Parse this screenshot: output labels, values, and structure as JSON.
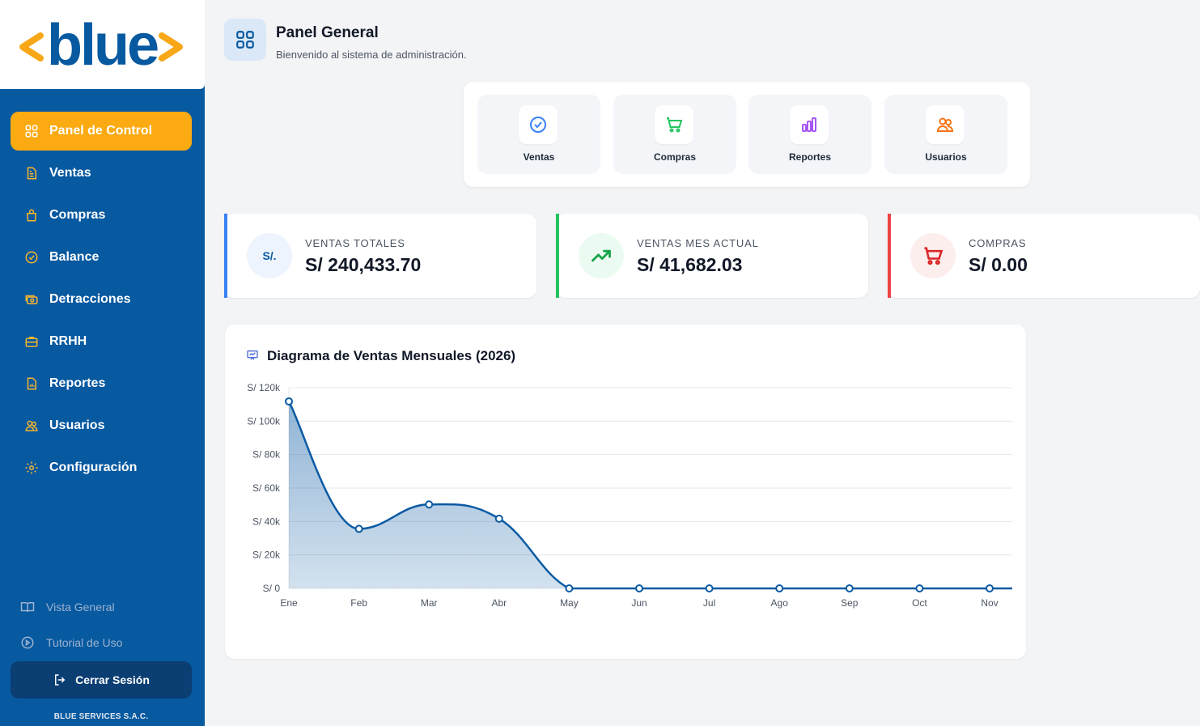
{
  "brand": {
    "logo_text": "<blue>"
  },
  "sidebar": {
    "items": [
      {
        "label": "Panel de Control",
        "icon": "grid-icon",
        "active": true
      },
      {
        "label": "Ventas",
        "icon": "document-icon"
      },
      {
        "label": "Compras",
        "icon": "shopping-bag-icon"
      },
      {
        "label": "Balance",
        "icon": "check-circle-icon"
      },
      {
        "label": "Detracciones",
        "icon": "money-icon"
      },
      {
        "label": "RRHH",
        "icon": "briefcase-icon"
      },
      {
        "label": "Reportes",
        "icon": "report-icon"
      },
      {
        "label": "Usuarios",
        "icon": "users-icon"
      },
      {
        "label": "Configuración",
        "icon": "gear-icon"
      }
    ],
    "bottom": {
      "overview": "Vista General",
      "tutorial": "Tutorial de Uso",
      "logout": "Cerrar Sesión",
      "company": "BLUE SERVICES S.A.C."
    }
  },
  "header": {
    "title": "Panel General",
    "subtitle": "Bienvenido al sistema de administración."
  },
  "quick_actions": [
    {
      "label": "Ventas",
      "icon": "check-circle-icon",
      "color": "#3b82f6"
    },
    {
      "label": "Compras",
      "icon": "cart-icon",
      "color": "#22c55e"
    },
    {
      "label": "Reportes",
      "icon": "bar-chart-icon",
      "color": "#a855f7"
    },
    {
      "label": "Usuarios",
      "icon": "users-icon",
      "color": "#f97316"
    }
  ],
  "stats": [
    {
      "label": "VENTAS TOTALES",
      "value": "S/ 240,433.70",
      "icon_text": "S/.",
      "accent": "#3b82f6"
    },
    {
      "label": "VENTAS MES ACTUAL",
      "value": "S/ 41,682.03",
      "accent": "#22c55e"
    },
    {
      "label": "COMPRAS",
      "value": "S/ 0.00",
      "accent": "#ef4444"
    }
  ],
  "chart_data": {
    "type": "area",
    "title": "Diagrama de Ventas Mensuales (2026)",
    "categories": [
      "Ene",
      "Feb",
      "Mar",
      "Abr",
      "May",
      "Jun",
      "Jul",
      "Ago",
      "Sep",
      "Oct",
      "Nov"
    ],
    "values": [
      111800,
      35600,
      50200,
      41700,
      0,
      0,
      0,
      0,
      0,
      0,
      0
    ],
    "ylim": [
      0,
      120000
    ],
    "yticks": [
      0,
      20000,
      40000,
      60000,
      80000,
      100000,
      120000
    ],
    "ytick_labels": [
      "S/ 0",
      "S/ 20k",
      "S/ 40k",
      "S/ 60k",
      "S/ 80k",
      "S/ 100k",
      "S/ 120k"
    ],
    "grid": true,
    "line_color": "#0b5aa3"
  }
}
